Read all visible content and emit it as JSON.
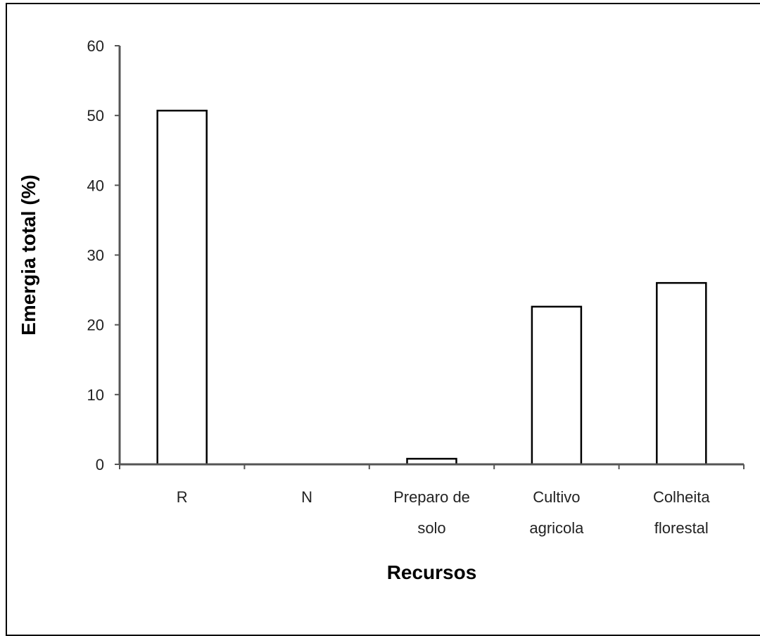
{
  "chart_data": {
    "type": "bar",
    "title": "",
    "xlabel": "Recursos",
    "ylabel": "Emergia total (%)",
    "ylim": [
      0,
      60
    ],
    "yticks": [
      0,
      10,
      20,
      30,
      40,
      50,
      60
    ],
    "categories": [
      [
        "R"
      ],
      [
        "N"
      ],
      [
        "Preparo de",
        "solo"
      ],
      [
        "Cultivo",
        "agricola"
      ],
      [
        "Colheita",
        "florestal"
      ]
    ],
    "values": [
      50.7,
      0,
      0.8,
      22.6,
      26.0
    ],
    "grid": false,
    "legend": "none",
    "bar_fill": "#ffffff",
    "bar_stroke": "#000000"
  }
}
